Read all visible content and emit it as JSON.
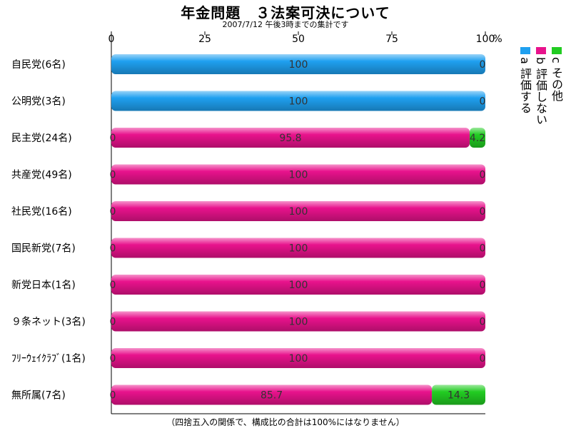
{
  "chart_data": {
    "type": "bar",
    "stacked": true,
    "orientation": "horizontal",
    "title": "年金問題　３法案可決について",
    "subtitle": "2007/7/12 午後3時までの集計です",
    "footnote": "（四捨五入の関係で、構成比の合計は100%にはなりません）",
    "axis_unit": "%",
    "xlim": [
      0,
      100
    ],
    "x_ticks": [
      "0",
      "25",
      "50",
      "75",
      "100"
    ],
    "grid": false,
    "legend_position": "right",
    "categories": [
      "自民党(6名)",
      "公明党(3名)",
      "民主党(24名)",
      "共産党(49名)",
      "社民党(16名)",
      "国民新党(7名)",
      "新党日本(1名)",
      "９条ネット(3名)",
      "ﾌﾘｰｳｪｲｸﾗﾌﾞ(1名)",
      "無所属(7名)"
    ],
    "series": [
      {
        "name": "a 評価する",
        "color": "#1fa0f0",
        "values": [
          100,
          100,
          0,
          0,
          0,
          0,
          0,
          0,
          0,
          0
        ],
        "labels": [
          "100",
          "100",
          "",
          "",
          "",
          "",
          "",
          "",
          "",
          ""
        ]
      },
      {
        "name": "b 評価しない",
        "color": "#e8128c",
        "values": [
          0,
          0,
          95.8,
          100,
          100,
          100,
          100,
          100,
          100,
          85.7
        ],
        "labels": [
          "",
          "",
          "95.8",
          "100",
          "100",
          "100",
          "100",
          "100",
          "100",
          "85.7"
        ]
      },
      {
        "name": "c その他",
        "color": "#22cc22",
        "values": [
          0,
          0,
          4.2,
          0,
          0,
          0,
          0,
          0,
          0,
          14.3
        ],
        "labels": [
          "0",
          "0",
          "4.2",
          "0",
          "0",
          "0",
          "0",
          "0",
          "0",
          "14.3"
        ]
      }
    ],
    "start_labels": [
      "",
      "",
      "0",
      "0",
      "0",
      "0",
      "0",
      "0",
      "0",
      "0"
    ]
  }
}
